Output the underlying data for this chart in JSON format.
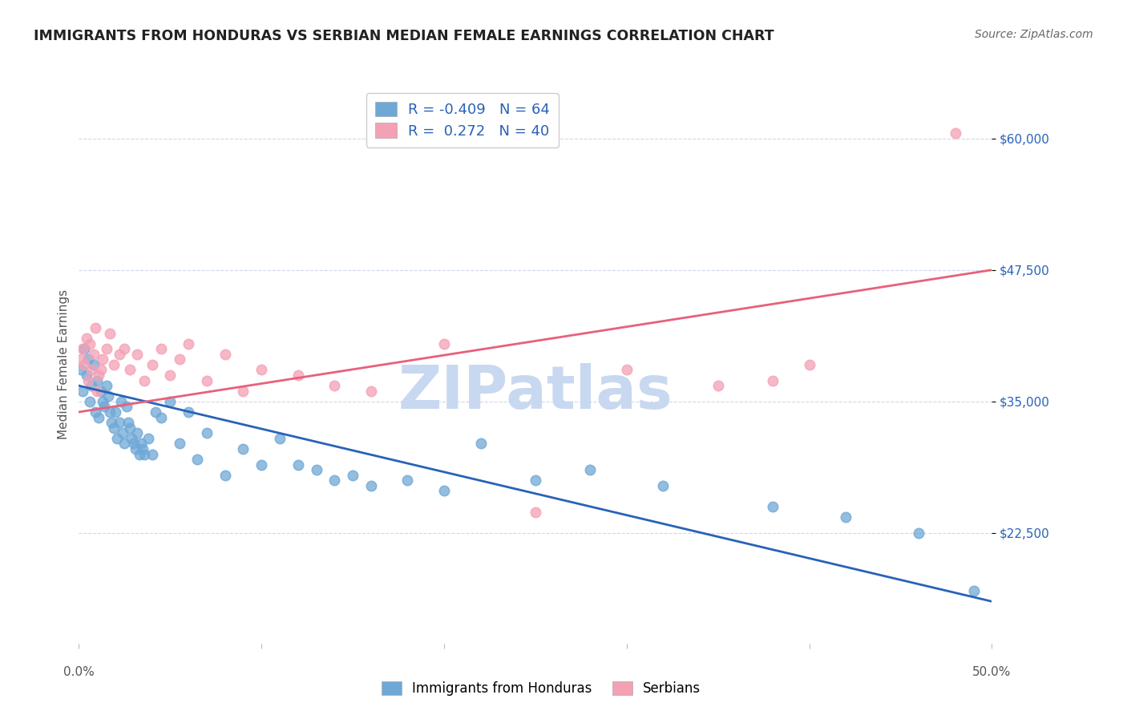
{
  "title": "IMMIGRANTS FROM HONDURAS VS SERBIAN MEDIAN FEMALE EARNINGS CORRELATION CHART",
  "source": "Source: ZipAtlas.com",
  "ylabel": "Median Female Earnings",
  "y_ticks": [
    22500,
    35000,
    47500,
    60000
  ],
  "y_tick_labels": [
    "$22,500",
    "$35,000",
    "$47,500",
    "$60,000"
  ],
  "x_range": [
    0.0,
    0.5
  ],
  "y_range": [
    12000,
    65000
  ],
  "blue_R": "-0.409",
  "blue_N": "64",
  "pink_R": "0.272",
  "pink_N": "40",
  "blue_color": "#6fa8d6",
  "pink_color": "#f4a0b5",
  "blue_line_color": "#2962b8",
  "pink_line_color": "#e8607a",
  "watermark_color": "#c8d8f0",
  "background_color": "#ffffff",
  "grid_color": "#d0d8e8",
  "blue_scatter_x": [
    0.001,
    0.002,
    0.003,
    0.004,
    0.005,
    0.006,
    0.007,
    0.008,
    0.009,
    0.01,
    0.011,
    0.012,
    0.013,
    0.014,
    0.015,
    0.016,
    0.017,
    0.018,
    0.019,
    0.02,
    0.021,
    0.022,
    0.023,
    0.024,
    0.025,
    0.026,
    0.027,
    0.028,
    0.029,
    0.03,
    0.031,
    0.032,
    0.033,
    0.034,
    0.035,
    0.036,
    0.038,
    0.04,
    0.042,
    0.045,
    0.05,
    0.055,
    0.06,
    0.065,
    0.07,
    0.08,
    0.09,
    0.1,
    0.11,
    0.12,
    0.13,
    0.14,
    0.15,
    0.16,
    0.18,
    0.2,
    0.22,
    0.25,
    0.28,
    0.32,
    0.38,
    0.42,
    0.46,
    0.49
  ],
  "blue_scatter_y": [
    38000,
    36000,
    40000,
    37500,
    39000,
    35000,
    36500,
    38500,
    34000,
    37000,
    33500,
    36000,
    35000,
    34500,
    36500,
    35500,
    34000,
    33000,
    32500,
    34000,
    31500,
    33000,
    35000,
    32000,
    31000,
    34500,
    33000,
    32500,
    31500,
    31000,
    30500,
    32000,
    30000,
    31000,
    30500,
    30000,
    31500,
    30000,
    34000,
    33500,
    35000,
    31000,
    34000,
    29500,
    32000,
    28000,
    30500,
    29000,
    31500,
    29000,
    28500,
    27500,
    28000,
    27000,
    27500,
    26500,
    31000,
    27500,
    28500,
    27000,
    25000,
    24000,
    22500,
    17000
  ],
  "pink_scatter_x": [
    0.001,
    0.002,
    0.003,
    0.004,
    0.005,
    0.006,
    0.007,
    0.008,
    0.009,
    0.01,
    0.011,
    0.012,
    0.013,
    0.015,
    0.017,
    0.019,
    0.022,
    0.025,
    0.028,
    0.032,
    0.036,
    0.04,
    0.045,
    0.05,
    0.055,
    0.06,
    0.07,
    0.08,
    0.09,
    0.1,
    0.12,
    0.14,
    0.16,
    0.2,
    0.25,
    0.3,
    0.35,
    0.38,
    0.4,
    0.48
  ],
  "pink_scatter_y": [
    39000,
    40000,
    38500,
    41000,
    37000,
    40500,
    38000,
    39500,
    42000,
    36000,
    37500,
    38000,
    39000,
    40000,
    41500,
    38500,
    39500,
    40000,
    38000,
    39500,
    37000,
    38500,
    40000,
    37500,
    39000,
    40500,
    37000,
    39500,
    36000,
    38000,
    37500,
    36500,
    36000,
    40500,
    24500,
    38000,
    36500,
    37000,
    38500,
    60500
  ],
  "blue_line_x": [
    0.0,
    0.5
  ],
  "blue_line_y": [
    36500,
    16000
  ],
  "pink_line_x": [
    0.0,
    0.5
  ],
  "pink_line_y": [
    34000,
    47500
  ]
}
